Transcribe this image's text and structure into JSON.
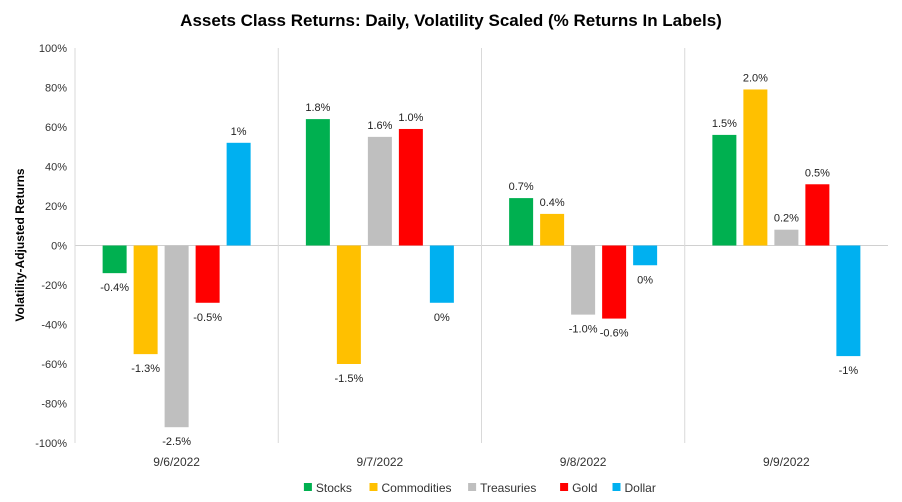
{
  "chart_data": {
    "type": "bar",
    "title": "Assets Class Returns: Daily, Volatility Scaled (% Returns In Labels)",
    "xlabel": "",
    "ylabel": "Volatility-Adjusted Returns",
    "ylim": [
      -100,
      100
    ],
    "y_ticks": [
      100,
      80,
      60,
      40,
      20,
      0,
      -20,
      -40,
      -60,
      -80,
      -100
    ],
    "y_tick_labels": [
      "100%",
      "80%",
      "60%",
      "40%",
      "20%",
      "0%",
      "-20%",
      "-40%",
      "-60%",
      "-80%",
      "-100%"
    ],
    "categories": [
      "9/6/2022",
      "9/7/2022",
      "9/8/2022",
      "9/9/2022"
    ],
    "legend_position": "bottom",
    "series": [
      {
        "name": "Stocks",
        "color": "#00b050",
        "values": [
          -14,
          64,
          24,
          56
        ],
        "labels": [
          "-0.4%",
          "1.8%",
          "0.7%",
          "1.5%"
        ]
      },
      {
        "name": "Commodities",
        "color": "#ffc000",
        "values": [
          -55,
          -60,
          16,
          79
        ],
        "labels": [
          "-1.3%",
          "-1.5%",
          "0.4%",
          "2.0%"
        ]
      },
      {
        "name": "Treasuries",
        "color": "#bfbfbf",
        "values": [
          -92,
          55,
          -35,
          8
        ],
        "labels": [
          "-2.5%",
          "1.6%",
          "-1.0%",
          "0.2%"
        ]
      },
      {
        "name": "Gold",
        "color": "#ff0000",
        "values": [
          -29,
          59,
          -37,
          31
        ],
        "labels": [
          "-0.5%",
          "1.0%",
          "-0.6%",
          "0.5%"
        ]
      },
      {
        "name": "Dollar",
        "color": "#00b0f0",
        "values": [
          52,
          -29,
          -10,
          -56
        ],
        "labels": [
          "1%",
          "0%",
          "0%",
          "-1%"
        ]
      }
    ]
  }
}
